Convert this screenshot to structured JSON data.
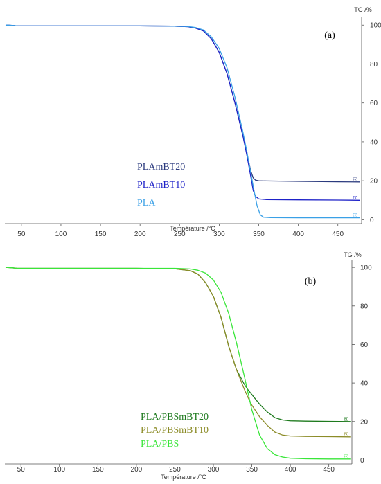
{
  "chart_data": [
    {
      "type": "line",
      "panel_label": "(a)",
      "xlabel": "Température /°C",
      "ylabel": "TG /%",
      "xlim": [
        30,
        480
      ],
      "ylim": [
        -2,
        104
      ],
      "x_ticks": [
        50,
        100,
        150,
        200,
        250,
        300,
        350,
        400,
        450
      ],
      "y_ticks": [
        0,
        20,
        40,
        60,
        80,
        100
      ],
      "grid": false,
      "legend_position": "center-left",
      "end_markers": [
        "[3]",
        "[2]",
        "[1]"
      ],
      "series": [
        {
          "name": "PLAmBT20",
          "color": "#2b3a7e",
          "x": [
            30,
            40,
            45,
            60,
            100,
            150,
            200,
            240,
            260,
            270,
            280,
            290,
            300,
            310,
            320,
            330,
            335,
            340,
            343,
            346,
            350,
            360,
            400,
            450,
            478
          ],
          "y": [
            100,
            99.8,
            99.6,
            99.6,
            99.6,
            99.6,
            99.6,
            99.5,
            99.2,
            98.5,
            97,
            93,
            86,
            75,
            60,
            43,
            34,
            25,
            21.5,
            20.3,
            20,
            19.9,
            19.7,
            19.5,
            19.4
          ]
        },
        {
          "name": "PLAmBT10",
          "color": "#1e22c8",
          "x": [
            30,
            40,
            45,
            60,
            100,
            150,
            200,
            240,
            260,
            270,
            280,
            290,
            300,
            310,
            320,
            330,
            335,
            340,
            343,
            346,
            350,
            360,
            400,
            450,
            478
          ],
          "y": [
            100,
            99.8,
            99.6,
            99.6,
            99.6,
            99.6,
            99.6,
            99.5,
            99.2,
            98.5,
            97,
            93,
            86,
            75,
            60,
            43,
            33,
            22,
            15,
            12,
            10.7,
            10.3,
            10.2,
            10.1,
            10.0
          ]
        },
        {
          "name": "PLA",
          "color": "#3aa0e6",
          "x": [
            30,
            40,
            45,
            60,
            100,
            150,
            200,
            240,
            260,
            270,
            280,
            290,
            300,
            310,
            320,
            330,
            335,
            340,
            344,
            348,
            352,
            356,
            365,
            400,
            450,
            478
          ],
          "y": [
            100,
            99.8,
            99.6,
            99.6,
            99.6,
            99.6,
            99.6,
            99.5,
            99.3,
            98.8,
            97.5,
            94,
            88,
            78,
            63,
            45,
            35,
            24,
            15,
            7,
            2.5,
            1.3,
            1.1,
            1.0,
            1.0,
            1.0
          ]
        }
      ]
    },
    {
      "type": "line",
      "panel_label": "(b)",
      "xlabel": "Température /°C",
      "ylabel": "TG /%",
      "xlim": [
        30,
        480
      ],
      "ylim": [
        -2,
        104
      ],
      "x_ticks": [
        50,
        100,
        150,
        200,
        250,
        300,
        350,
        400,
        450
      ],
      "y_ticks": [
        0,
        20,
        40,
        60,
        80,
        100
      ],
      "grid": false,
      "legend_position": "bottom-center",
      "end_markers": [
        "[3]",
        "[2]",
        "[1]"
      ],
      "series": [
        {
          "name": "PLA/PBSmBT20",
          "color": "#1e7a1e",
          "x": [
            30,
            38,
            45,
            60,
            100,
            150,
            200,
            250,
            270,
            280,
            290,
            300,
            310,
            320,
            330,
            340,
            345,
            350,
            360,
            370,
            380,
            390,
            400,
            420,
            450,
            478
          ],
          "y": [
            100,
            99.8,
            99.5,
            99.5,
            99.5,
            99.5,
            99.5,
            99.3,
            98.3,
            96.5,
            92,
            85,
            74,
            59,
            47,
            39.5,
            36.5,
            34,
            29,
            25,
            22,
            20.8,
            20.4,
            20.2,
            20.1,
            20.0
          ]
        },
        {
          "name": "PLA/PBSmBT10",
          "color": "#8c8c28",
          "x": [
            30,
            38,
            45,
            60,
            100,
            150,
            200,
            250,
            270,
            280,
            290,
            300,
            310,
            320,
            330,
            340,
            345,
            350,
            360,
            370,
            380,
            390,
            400,
            420,
            450,
            478
          ],
          "y": [
            100,
            99.8,
            99.5,
            99.5,
            99.5,
            99.5,
            99.5,
            99.3,
            98.3,
            96.5,
            92,
            85,
            74,
            59,
            47,
            37,
            32.5,
            28.5,
            22.5,
            18,
            14.5,
            13,
            12.5,
            12.3,
            12.2,
            12.1
          ]
        },
        {
          "name": "PLA/PBS",
          "color": "#39e639",
          "x": [
            30,
            38,
            45,
            60,
            100,
            150,
            200,
            250,
            270,
            280,
            290,
            300,
            310,
            320,
            330,
            340,
            350,
            360,
            370,
            380,
            390,
            400,
            420,
            450,
            478
          ],
          "y": [
            100,
            99.8,
            99.5,
            99.5,
            99.5,
            99.5,
            99.5,
            99.5,
            99.2,
            98.5,
            97,
            93.5,
            87,
            76,
            61,
            44,
            26,
            13,
            6,
            2.8,
            1.6,
            1.0,
            0.7,
            0.6,
            0.6
          ]
        }
      ]
    }
  ]
}
